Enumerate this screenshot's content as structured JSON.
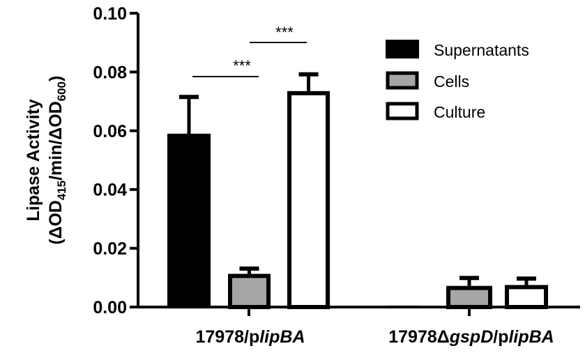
{
  "chart_data": {
    "type": "bar",
    "title": "",
    "xlabel": "",
    "ylabel": "Lipase Activity",
    "ylabel_line2": "(ΔOD415/min/ΔOD600)",
    "ylim": [
      0,
      0.1
    ],
    "yticks": [
      "0.00",
      "0.02",
      "0.04",
      "0.06",
      "0.08",
      "0.10"
    ],
    "grid": false,
    "legend_position": "upper right",
    "categories": [
      "17978/plipBA",
      "17978ΔgspD/plipBA"
    ],
    "series": [
      {
        "name": "Supernatants",
        "fill": "#000000",
        "values": [
          0.059,
          0.0005
        ],
        "error": [
          0.0125,
          0.0002
        ]
      },
      {
        "name": "Cells",
        "fill": "#a6a6a6",
        "values": [
          0.0113,
          0.0072
        ],
        "error": [
          0.0018,
          0.0027
        ]
      },
      {
        "name": "Culture",
        "fill": "#ffffff",
        "values": [
          0.0735,
          0.0075
        ],
        "error": [
          0.0057,
          0.0022
        ]
      }
    ],
    "annotations": [
      {
        "text": "***",
        "between": [
          "Supernatants",
          "Cells"
        ],
        "group": "17978/plipBA"
      },
      {
        "text": "***",
        "between": [
          "Cells",
          "Culture"
        ],
        "group": "17978/plipBA"
      }
    ]
  },
  "labels": {
    "ylabel_main": "Lipase Activity",
    "ylabel_open": "(ΔOD",
    "ylabel_sub1": "415",
    "ylabel_mid": "/min/ΔOD",
    "ylabel_sub2": "600",
    "ylabel_close": ")",
    "cat1_a": "17978/p",
    "cat1_b": "lipBA",
    "cat2_a": "17978Δ",
    "cat2_b": "gspD",
    "cat2_c": "/p",
    "cat2_d": "lipBA",
    "sig1": "***",
    "sig2": "***",
    "legend": [
      "Supernatants",
      "Cells",
      "Culture"
    ]
  }
}
